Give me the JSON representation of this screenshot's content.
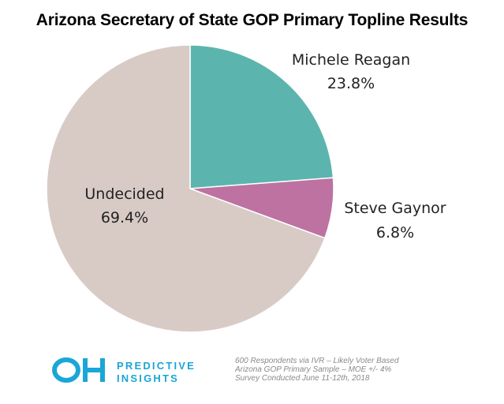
{
  "title": "Arizona Secretary of State GOP Primary Topline Results",
  "chart_data": {
    "type": "pie",
    "title": "Arizona Secretary of State GOP Primary Topline Results",
    "slices": [
      {
        "name": "Michele Reagan",
        "value": 23.8,
        "label": "23.8%",
        "color": "#5bb5ae"
      },
      {
        "name": "Steve Gaynor",
        "value": 6.8,
        "label": "6.8%",
        "color": "#be72a1"
      },
      {
        "name": "Undecided",
        "value": 69.4,
        "label": "69.4%",
        "color": "#d8cbc6"
      }
    ],
    "start_angle_deg": 0,
    "direction": "clockwise"
  },
  "logo": {
    "mark": "OH",
    "line1": "PREDICTIVE",
    "line2": "INSIGHTS",
    "color": "#1aa6d6"
  },
  "footnote": {
    "line1": "600 Respondents via IVR – Likely Voter Based",
    "line2": "Arizona GOP Primary Sample – MOE +/- 4%",
    "line3": "Survey Conducted June 11-12th, 2018"
  }
}
